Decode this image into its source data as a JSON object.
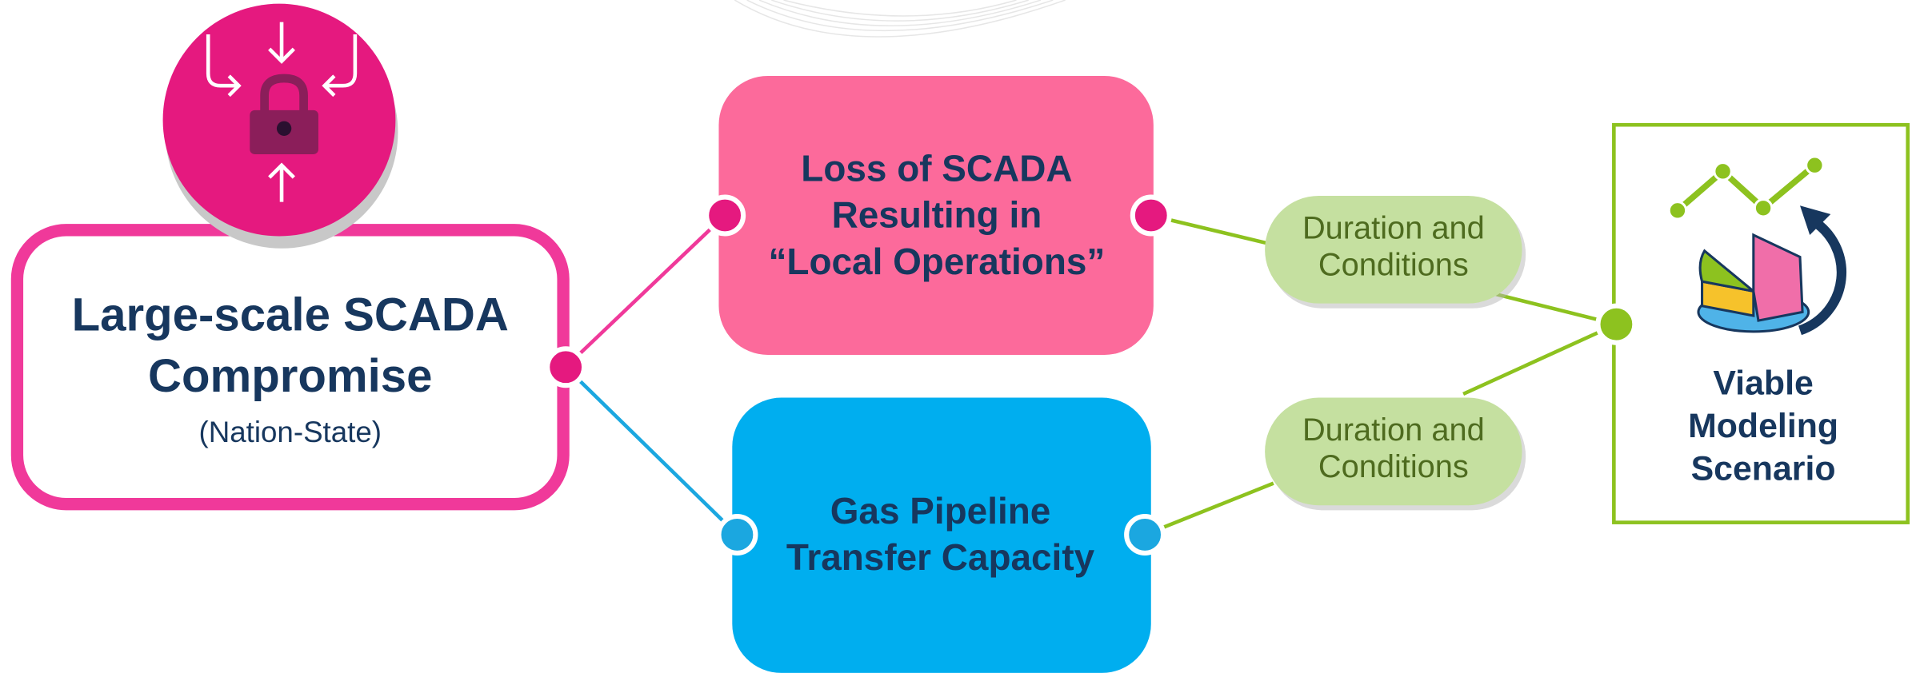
{
  "source": {
    "title_lines": [
      "Large-scale SCADA",
      "Compromise"
    ],
    "subtitle": "(Nation-State)"
  },
  "effects": [
    {
      "lines": [
        "Loss of SCADA",
        "Resulting in",
        "“Local Operations”"
      ]
    },
    {
      "lines": [
        "Gas Pipeline",
        "Transfer Capacity"
      ]
    }
  ],
  "factors": [
    {
      "lines": [
        "Duration and",
        "Conditions"
      ]
    },
    {
      "lines": [
        "Duration and",
        "Conditions"
      ]
    }
  ],
  "result": {
    "lines": [
      "Viable",
      "Modeling",
      "Scenario"
    ]
  }
}
